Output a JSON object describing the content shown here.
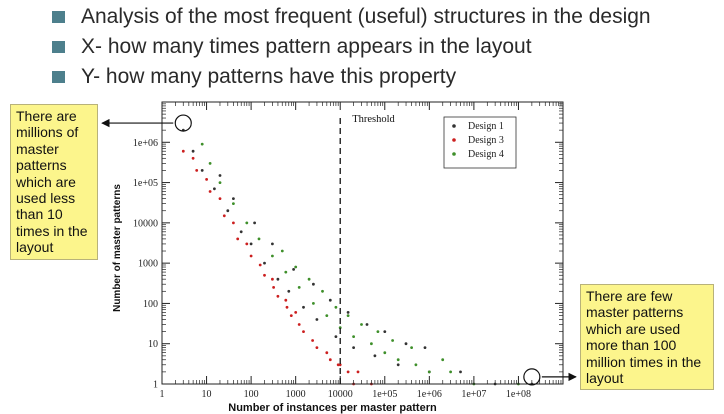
{
  "bullets": [
    "Analysis of the most frequent (useful) structures in the design",
    "X- how many times pattern appears in the layout",
    "Y- how many patterns have this property"
  ],
  "notes": {
    "left": "There are millions of master patterns which are used less than 10 times in the layout",
    "right": "There are few master patterns which are used more than 100 million times in the layout"
  },
  "colors": {
    "bullet": "#4d7f8c",
    "note_bg": "#fcf58c",
    "design1": "#333333",
    "design3": "#cc1f1f",
    "design4": "#3e8f2a"
  },
  "chart_data": {
    "type": "scatter",
    "xlabel": "Number of instances per master pattern",
    "ylabel": "Number of master patterns",
    "x_scale": "log",
    "y_scale": "log",
    "xlim": [
      1,
      1000000000
    ],
    "ylim": [
      1,
      10000000
    ],
    "x_ticks": [
      {
        "value": 1,
        "label": "1"
      },
      {
        "value": 10,
        "label": "10"
      },
      {
        "value": 100,
        "label": "100"
      },
      {
        "value": 1000,
        "label": "1000"
      },
      {
        "value": 10000,
        "label": "10000"
      },
      {
        "value": 100000,
        "label": "1e+05"
      },
      {
        "value": 1000000,
        "label": "1e+06"
      },
      {
        "value": 10000000,
        "label": "1e+07"
      },
      {
        "value": 100000000,
        "label": "1e+08"
      }
    ],
    "y_ticks": [
      {
        "value": 1,
        "label": "1"
      },
      {
        "value": 10,
        "label": "10"
      },
      {
        "value": 100,
        "label": "100"
      },
      {
        "value": 1000,
        "label": "1000"
      },
      {
        "value": 10000,
        "label": "10000"
      },
      {
        "value": 100000,
        "label": "1e+05"
      },
      {
        "value": 1000000,
        "label": "1e+06"
      }
    ],
    "threshold": {
      "x": 10000,
      "label": "Threshold"
    },
    "legend_position": "top-right",
    "series": [
      {
        "name": "Design 1",
        "color": "#333333",
        "points": [
          [
            3,
            2000000
          ],
          [
            5,
            600000
          ],
          [
            8,
            200000
          ],
          [
            15,
            70000
          ],
          [
            30,
            20000
          ],
          [
            60,
            6000
          ],
          [
            100,
            3000
          ],
          [
            200,
            1000
          ],
          [
            400,
            400
          ],
          [
            700,
            200
          ],
          [
            1500,
            80
          ],
          [
            3000,
            40
          ],
          [
            8000,
            15
          ],
          [
            20000,
            8
          ],
          [
            60000,
            5
          ],
          [
            200000,
            3
          ],
          [
            1000000,
            2
          ],
          [
            5000000,
            2
          ],
          [
            30000000,
            1
          ],
          [
            200000000,
            1
          ],
          [
            20,
            150000
          ],
          [
            40,
            40000
          ],
          [
            120,
            10000
          ],
          [
            300,
            3000
          ],
          [
            900,
            700
          ],
          [
            2500,
            300
          ],
          [
            6000,
            120
          ],
          [
            15000,
            60
          ],
          [
            40000,
            30
          ],
          [
            100000,
            20
          ],
          [
            300000,
            10
          ],
          [
            800000,
            8
          ]
        ]
      },
      {
        "name": "Design 3",
        "color": "#cc1f1f",
        "points": [
          [
            3,
            600000
          ],
          [
            6,
            200000
          ],
          [
            12,
            60000
          ],
          [
            25,
            15000
          ],
          [
            50,
            4000
          ],
          [
            100,
            1500
          ],
          [
            200,
            500
          ],
          [
            400,
            150
          ],
          [
            800,
            50
          ],
          [
            1500,
            20
          ],
          [
            3000,
            8
          ],
          [
            6000,
            4
          ],
          [
            10000,
            3
          ],
          [
            15000,
            2
          ],
          [
            25000,
            2
          ],
          [
            5,
            400000
          ],
          [
            10,
            120000
          ],
          [
            20,
            40000
          ],
          [
            40,
            10000
          ],
          [
            80,
            3000
          ],
          [
            160,
            900
          ],
          [
            320,
            250
          ],
          [
            640,
            80
          ],
          [
            1200,
            30
          ],
          [
            2400,
            12
          ],
          [
            5000,
            6
          ],
          [
            9000,
            3
          ],
          [
            20000,
            1
          ],
          [
            50000,
            1
          ],
          [
            300,
            400
          ],
          [
            600,
            120
          ],
          [
            1000,
            60
          ]
        ]
      },
      {
        "name": "Design 4",
        "color": "#3e8f2a",
        "points": [
          [
            8,
            900000
          ],
          [
            12,
            300000
          ],
          [
            20,
            100000
          ],
          [
            40,
            30000
          ],
          [
            80,
            10000
          ],
          [
            150,
            4000
          ],
          [
            300,
            1500
          ],
          [
            600,
            600
          ],
          [
            1200,
            250
          ],
          [
            2500,
            100
          ],
          [
            5000,
            50
          ],
          [
            10000,
            25
          ],
          [
            20000,
            15
          ],
          [
            50000,
            10
          ],
          [
            100000,
            6
          ],
          [
            200000,
            4
          ],
          [
            500000,
            3
          ],
          [
            1000000,
            2
          ],
          [
            3000000,
            2
          ],
          [
            10000000,
            1
          ],
          [
            100000000,
            1
          ],
          [
            500,
            2000
          ],
          [
            1000,
            800
          ],
          [
            2000,
            400
          ],
          [
            4000,
            200
          ],
          [
            8000,
            80
          ],
          [
            15000,
            50
          ],
          [
            30000,
            30
          ],
          [
            70000,
            20
          ],
          [
            150000,
            12
          ],
          [
            400000,
            8
          ],
          [
            2000000,
            4
          ]
        ]
      }
    ]
  }
}
